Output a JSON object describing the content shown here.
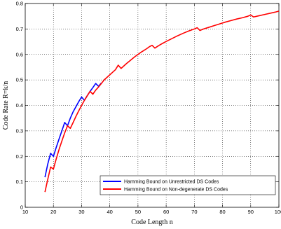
{
  "chart_data": {
    "type": "line",
    "xlabel": "Code Length n",
    "ylabel": "Code Rate R=k/n",
    "xlim": [
      10,
      100
    ],
    "ylim": [
      0,
      0.8
    ],
    "xticks": [
      "10",
      "20",
      "30",
      "40",
      "50",
      "60",
      "70",
      "80",
      "90",
      "100"
    ],
    "yticks": [
      "0",
      "0.1",
      "0.2",
      "0.3",
      "0.4",
      "0.5",
      "0.6",
      "0.7",
      "0.8"
    ],
    "grid": true,
    "legend_position": "bottom-right",
    "series": [
      {
        "name": "Hamming Bound on Unrestricted DS Codes",
        "color": "#0000ff",
        "points": [
          [
            17,
            0.118
          ],
          [
            18,
            0.17
          ],
          [
            19,
            0.212
          ],
          [
            20,
            0.2
          ],
          [
            21,
            0.235
          ],
          [
            22,
            0.268
          ],
          [
            23,
            0.3
          ],
          [
            24,
            0.333
          ],
          [
            25,
            0.32
          ],
          [
            26,
            0.35
          ],
          [
            27,
            0.375
          ],
          [
            28,
            0.395
          ],
          [
            29,
            0.415
          ],
          [
            30,
            0.433
          ],
          [
            31,
            0.42
          ],
          [
            32,
            0.438
          ],
          [
            33,
            0.455
          ],
          [
            34,
            0.47
          ],
          [
            35,
            0.486
          ],
          [
            36,
            0.475
          ],
          [
            37,
            0.488
          ]
        ]
      },
      {
        "name": "Hamming Bound on Non-degenerate DS Codes",
        "color": "#ff0000",
        "points": [
          [
            17,
            0.06
          ],
          [
            18,
            0.11
          ],
          [
            19,
            0.158
          ],
          [
            20,
            0.15
          ],
          [
            21,
            0.19
          ],
          [
            22,
            0.227
          ],
          [
            23,
            0.26
          ],
          [
            24,
            0.292
          ],
          [
            25,
            0.32
          ],
          [
            26,
            0.31
          ],
          [
            27,
            0.333
          ],
          [
            28,
            0.357
          ],
          [
            29,
            0.379
          ],
          [
            30,
            0.4
          ],
          [
            31,
            0.42
          ],
          [
            32,
            0.438
          ],
          [
            33,
            0.455
          ],
          [
            34,
            0.444
          ],
          [
            35,
            0.46
          ],
          [
            36,
            0.472
          ],
          [
            37,
            0.486
          ],
          [
            38,
            0.5
          ],
          [
            39,
            0.51
          ],
          [
            40,
            0.52
          ],
          [
            41,
            0.53
          ],
          [
            42,
            0.54
          ],
          [
            43,
            0.558
          ],
          [
            44,
            0.545
          ],
          [
            45,
            0.555
          ],
          [
            46,
            0.565
          ],
          [
            47,
            0.574
          ],
          [
            48,
            0.583
          ],
          [
            49,
            0.592
          ],
          [
            50,
            0.6
          ],
          [
            51,
            0.608
          ],
          [
            52,
            0.615
          ],
          [
            53,
            0.622
          ],
          [
            54,
            0.63
          ],
          [
            55,
            0.636
          ],
          [
            56,
            0.625
          ],
          [
            57,
            0.632
          ],
          [
            58,
            0.639
          ],
          [
            59,
            0.645
          ],
          [
            60,
            0.651
          ],
          [
            62,
            0.662
          ],
          [
            64,
            0.673
          ],
          [
            66,
            0.683
          ],
          [
            68,
            0.692
          ],
          [
            70,
            0.7
          ],
          [
            71,
            0.705
          ],
          [
            72,
            0.694
          ],
          [
            73,
            0.699
          ],
          [
            75,
            0.706
          ],
          [
            77,
            0.713
          ],
          [
            79,
            0.72
          ],
          [
            81,
            0.727
          ],
          [
            83,
            0.733
          ],
          [
            85,
            0.739
          ],
          [
            87,
            0.744
          ],
          [
            89,
            0.75
          ],
          [
            90,
            0.755
          ],
          [
            91,
            0.747
          ],
          [
            93,
            0.752
          ],
          [
            95,
            0.757
          ],
          [
            97,
            0.762
          ],
          [
            99,
            0.767
          ],
          [
            100,
            0.77
          ]
        ]
      }
    ]
  }
}
